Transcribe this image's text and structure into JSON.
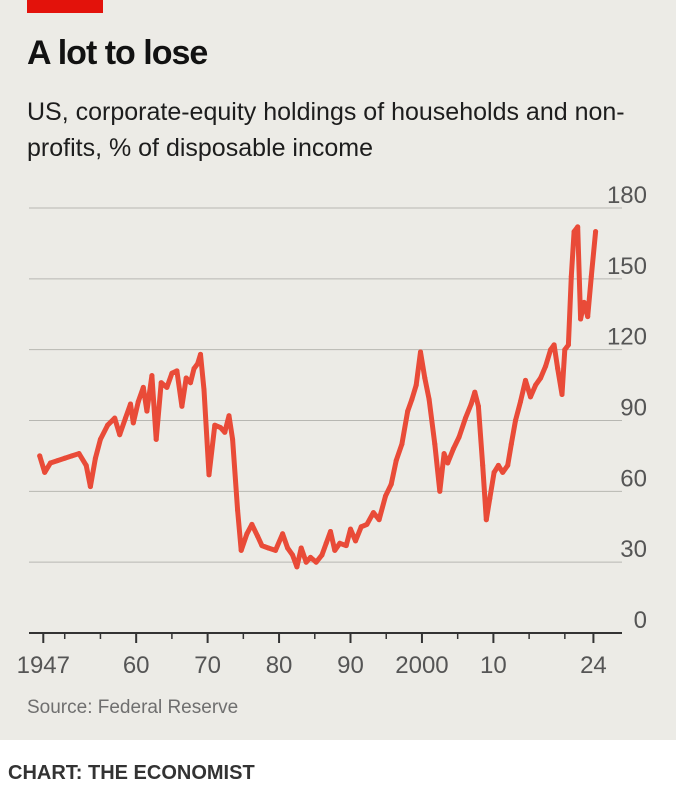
{
  "colors": {
    "background": "#ecebe6",
    "accent": "#e3120b",
    "line": "#e94b38",
    "grid": "#b7b7b2",
    "axis": "#333333"
  },
  "header": {
    "title": "A lot to lose",
    "subtitle": "US, corporate-equity holdings of households and non-profits, % of disposable income"
  },
  "footer": {
    "source": "Source: Federal Reserve",
    "credit": "CHART: THE ECONOMIST"
  },
  "chart_data": {
    "type": "line",
    "title": "A lot to lose",
    "subtitle": "US, corporate-equity holdings of households and non-profits, % of disposable income",
    "xlabel": "",
    "ylabel": "",
    "ylim": [
      0,
      180
    ],
    "xlim": [
      1945,
      2028
    ],
    "grid": true,
    "y_ticks": [
      0,
      30,
      60,
      90,
      120,
      150,
      180
    ],
    "y_tick_labels": [
      "0",
      "30",
      "60",
      "90",
      "120",
      "150",
      "180"
    ],
    "x_ticks": [
      1947,
      1960,
      1970,
      1980,
      1990,
      2000,
      2010,
      2024
    ],
    "x_tick_labels": [
      "1947",
      "60",
      "70",
      "80",
      "90",
      "2000",
      "10",
      "24"
    ],
    "x_minor_ticks": [
      1950,
      1955,
      1965,
      1975,
      1985,
      1995,
      2005,
      2015,
      2020
    ],
    "series": [
      {
        "x": [
          1946.5,
          1947.2,
          1948,
          1949,
          1950,
          1951,
          1952,
          1953,
          1953.6,
          1954.3,
          1955,
          1956,
          1957,
          1957.7,
          1958.5,
          1959.2,
          1959.6,
          1960.3,
          1961,
          1961.5,
          1962.2,
          1962.8,
          1963.5,
          1964.3,
          1965,
          1965.7,
          1966.4,
          1967,
          1967.6,
          1968.1,
          1968.6,
          1969,
          1969.5,
          1970.2,
          1971,
          1971.8,
          1972.4,
          1973,
          1973.5,
          1974.2,
          1974.7,
          1975.5,
          1976.2,
          1977,
          1977.6,
          1978.5,
          1979.5,
          1980.5,
          1981.2,
          1981.9,
          1982.5,
          1983.1,
          1983.8,
          1984.4,
          1985.2,
          1986,
          1986.6,
          1987.2,
          1987.8,
          1988.5,
          1989.4,
          1990,
          1990.7,
          1991.5,
          1992.3,
          1993.2,
          1994,
          1994.9,
          1995.7,
          1996.4,
          1997.2,
          1998,
          1998.6,
          1999.2,
          1999.8,
          2000.4,
          2001,
          2001.8,
          2002.5,
          2003.1,
          2003.6,
          2004.4,
          2005.2,
          2006.1,
          2006.9,
          2007.4,
          2007.9,
          2008.5,
          2009,
          2009.5,
          2010.1,
          2010.7,
          2011.3,
          2012,
          2012.5,
          2013.1,
          2013.8,
          2014.5,
          2015.2,
          2015.9,
          2016.6,
          2017.3,
          2018,
          2018.5,
          2019,
          2019.6,
          2020,
          2020.5,
          2020.9,
          2021.3,
          2021.8,
          2022.2,
          2022.7,
          2023.2,
          2023.7,
          2024.3
        ],
        "values": [
          75,
          68,
          72,
          73,
          74,
          75,
          76,
          71,
          62,
          74,
          82,
          88,
          91,
          84,
          91,
          97,
          89,
          98,
          104,
          94,
          109,
          82,
          106,
          104,
          110,
          111,
          96,
          108,
          106,
          112,
          114,
          118,
          103,
          67,
          88,
          87,
          85,
          92,
          82,
          52,
          35,
          42,
          46,
          41,
          37,
          36,
          35,
          42,
          36,
          33,
          28,
          36,
          30,
          32,
          30,
          33,
          38,
          43,
          35,
          38,
          37,
          44,
          39,
          45,
          46,
          51,
          48,
          58,
          63,
          73,
          80,
          94,
          99,
          105,
          119,
          108,
          99,
          80,
          60,
          76,
          72,
          78,
          83,
          91,
          97,
          102,
          96,
          71,
          48,
          57,
          68,
          71,
          68,
          71,
          80,
          90,
          98,
          107,
          100,
          105,
          108,
          113,
          120,
          122,
          112,
          101,
          120,
          122,
          151,
          170,
          172,
          133,
          140,
          134,
          151,
          170
        ]
      }
    ]
  }
}
